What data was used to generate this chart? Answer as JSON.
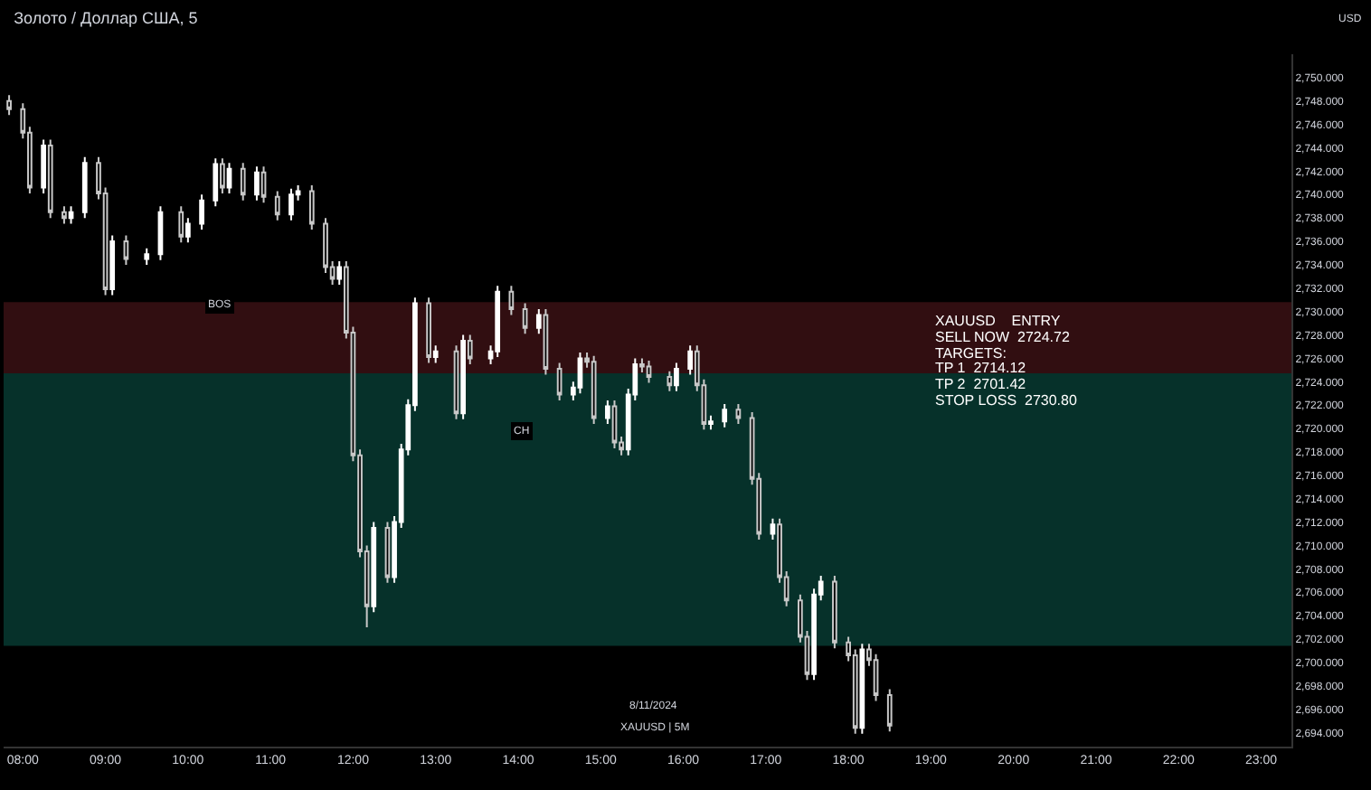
{
  "chart_data": {
    "type": "candlestick",
    "title": "Золото / Доллар США, 5",
    "x": [
      "2024-11-08T07:50",
      "2024-11-08T08:00",
      "2024-11-08T08:05",
      "2024-11-08T08:15",
      "2024-11-08T08:20",
      "2024-11-08T08:30",
      "2024-11-08T08:35",
      "2024-11-08T08:45",
      "2024-11-08T08:55",
      "2024-11-08T09:00",
      "2024-11-08T09:05",
      "2024-11-08T09:15",
      "2024-11-08T09:30",
      "2024-11-08T09:40",
      "2024-11-08T09:55",
      "2024-11-08T10:00",
      "2024-11-08T10:10",
      "2024-11-08T10:20",
      "2024-11-08T10:25",
      "2024-11-08T10:30",
      "2024-11-08T10:40",
      "2024-11-08T10:50",
      "2024-11-08T10:55",
      "2024-11-08T11:05",
      "2024-11-08T11:15",
      "2024-11-08T11:20",
      "2024-11-08T11:30",
      "2024-11-08T11:40",
      "2024-11-08T11:45",
      "2024-11-08T11:50",
      "2024-11-08T11:55",
      "2024-11-08T12:00",
      "2024-11-08T12:05",
      "2024-11-08T12:10",
      "2024-11-08T12:15",
      "2024-11-08T12:25",
      "2024-11-08T12:30",
      "2024-11-08T12:35",
      "2024-11-08T12:40",
      "2024-11-08T12:45",
      "2024-11-08T12:55",
      "2024-11-08T13:00",
      "2024-11-08T13:15",
      "2024-11-08T13:20",
      "2024-11-08T13:25",
      "2024-11-08T13:40",
      "2024-11-08T13:45",
      "2024-11-08T13:55",
      "2024-11-08T14:05",
      "2024-11-08T14:15",
      "2024-11-08T14:20",
      "2024-11-08T14:30",
      "2024-11-08T14:40",
      "2024-11-08T14:45",
      "2024-11-08T14:50",
      "2024-11-08T14:55",
      "2024-11-08T15:05",
      "2024-11-08T15:10",
      "2024-11-08T15:15",
      "2024-11-08T15:20",
      "2024-11-08T15:25",
      "2024-11-08T15:30",
      "2024-11-08T15:35",
      "2024-11-08T15:50",
      "2024-11-08T15:55",
      "2024-11-08T16:05",
      "2024-11-08T16:10",
      "2024-11-08T16:15",
      "2024-11-08T16:20",
      "2024-11-08T16:30",
      "2024-11-08T16:40",
      "2024-11-08T16:50",
      "2024-11-08T16:55",
      "2024-11-08T17:05",
      "2024-11-08T17:10",
      "2024-11-08T17:15",
      "2024-11-08T17:25",
      "2024-11-08T17:30",
      "2024-11-08T17:35",
      "2024-11-08T17:40",
      "2024-11-08T17:50",
      "2024-11-08T18:00",
      "2024-11-08T18:05",
      "2024-11-08T18:10",
      "2024-11-08T18:15",
      "2024-11-08T18:20",
      "2024-11-08T18:30"
    ],
    "ohlc": [
      [
        2748.0,
        2748.5,
        2746.8,
        2747.3
      ],
      [
        2747.3,
        2747.8,
        2744.8,
        2745.3
      ],
      [
        2745.3,
        2745.8,
        2740.1,
        2740.6
      ],
      [
        2740.6,
        2744.7,
        2740.1,
        2744.2
      ],
      [
        2744.2,
        2744.7,
        2738.0,
        2738.5
      ],
      [
        2738.5,
        2739.0,
        2737.5,
        2738.0
      ],
      [
        2738.0,
        2739.0,
        2737.5,
        2738.5
      ],
      [
        2738.5,
        2743.2,
        2738.0,
        2742.7
      ],
      [
        2742.7,
        2743.2,
        2739.6,
        2740.1
      ],
      [
        2740.1,
        2740.6,
        2731.4,
        2731.9
      ],
      [
        2731.9,
        2736.5,
        2731.4,
        2736.0
      ],
      [
        2736.0,
        2736.5,
        2734.0,
        2734.5
      ],
      [
        2734.5,
        2735.4,
        2734.0,
        2734.9
      ],
      [
        2734.9,
        2739.0,
        2734.4,
        2738.5
      ],
      [
        2738.5,
        2739.0,
        2735.9,
        2736.4
      ],
      [
        2736.4,
        2738.0,
        2735.9,
        2737.5
      ],
      [
        2737.5,
        2740.0,
        2737.0,
        2739.5
      ],
      [
        2739.5,
        2743.1,
        2739.0,
        2742.6
      ],
      [
        2742.6,
        2743.1,
        2740.1,
        2740.6
      ],
      [
        2740.6,
        2742.7,
        2740.1,
        2742.2
      ],
      [
        2742.2,
        2742.7,
        2739.5,
        2740.0
      ],
      [
        2740.0,
        2742.4,
        2739.5,
        2741.9
      ],
      [
        2741.9,
        2742.4,
        2739.3,
        2739.8
      ],
      [
        2739.8,
        2740.3,
        2737.8,
        2738.3
      ],
      [
        2738.3,
        2740.5,
        2737.8,
        2740.0
      ],
      [
        2740.0,
        2740.8,
        2739.5,
        2740.3
      ],
      [
        2740.3,
        2740.8,
        2737.0,
        2737.5
      ],
      [
        2737.5,
        2738.0,
        2733.3,
        2733.8
      ],
      [
        2733.8,
        2734.3,
        2732.3,
        2732.8
      ],
      [
        2732.8,
        2734.3,
        2732.3,
        2733.8
      ],
      [
        2733.8,
        2734.3,
        2727.7,
        2728.2
      ],
      [
        2728.2,
        2728.7,
        2717.2,
        2717.7
      ],
      [
        2717.7,
        2718.2,
        2709.0,
        2709.5
      ],
      [
        2709.5,
        2710.0,
        2703.0,
        2704.8
      ],
      [
        2704.8,
        2712.0,
        2704.3,
        2711.5
      ],
      [
        2711.5,
        2712.0,
        2706.8,
        2707.3
      ],
      [
        2707.3,
        2712.5,
        2706.8,
        2712.0
      ],
      [
        2712.0,
        2718.7,
        2711.5,
        2718.2
      ],
      [
        2718.2,
        2722.5,
        2717.7,
        2722.0
      ],
      [
        2722.0,
        2731.2,
        2721.5,
        2730.7
      ],
      [
        2730.7,
        2731.2,
        2725.6,
        2726.1
      ],
      [
        2726.1,
        2727.1,
        2725.6,
        2726.6
      ],
      [
        2726.6,
        2727.1,
        2720.8,
        2721.3
      ],
      [
        2721.3,
        2728.0,
        2720.8,
        2727.5
      ],
      [
        2727.5,
        2728.0,
        2725.5,
        2726.0
      ],
      [
        2726.0,
        2727.1,
        2725.5,
        2726.6
      ],
      [
        2726.6,
        2732.2,
        2726.1,
        2731.7
      ],
      [
        2731.7,
        2732.2,
        2729.7,
        2730.2
      ],
      [
        2730.2,
        2730.7,
        2728.1,
        2728.6
      ],
      [
        2728.6,
        2730.2,
        2728.1,
        2729.7
      ],
      [
        2729.7,
        2730.2,
        2724.6,
        2725.1
      ],
      [
        2725.1,
        2725.6,
        2722.4,
        2722.9
      ],
      [
        2722.9,
        2724.0,
        2722.4,
        2723.5
      ],
      [
        2723.5,
        2726.5,
        2723.0,
        2726.0
      ],
      [
        2726.0,
        2726.5,
        2725.2,
        2725.7
      ],
      [
        2725.7,
        2726.2,
        2720.4,
        2720.9
      ],
      [
        2720.9,
        2722.4,
        2720.4,
        2721.9
      ],
      [
        2721.9,
        2722.4,
        2718.3,
        2718.8
      ],
      [
        2718.8,
        2719.3,
        2717.7,
        2718.2
      ],
      [
        2718.2,
        2723.4,
        2717.7,
        2722.9
      ],
      [
        2722.9,
        2726.0,
        2722.4,
        2725.5
      ],
      [
        2725.5,
        2726.0,
        2724.8,
        2725.3
      ],
      [
        2725.3,
        2725.8,
        2723.9,
        2724.4
      ],
      [
        2724.4,
        2724.9,
        2723.2,
        2723.7
      ],
      [
        2723.7,
        2725.6,
        2723.2,
        2725.1
      ],
      [
        2725.1,
        2727.1,
        2724.6,
        2726.6
      ],
      [
        2726.6,
        2727.1,
        2723.2,
        2723.7
      ],
      [
        2723.7,
        2724.2,
        2719.9,
        2720.4
      ],
      [
        2720.4,
        2721.1,
        2719.9,
        2720.6
      ],
      [
        2720.6,
        2722.1,
        2720.1,
        2721.6
      ],
      [
        2721.6,
        2722.1,
        2720.4,
        2720.9
      ],
      [
        2720.9,
        2721.4,
        2715.2,
        2715.7
      ],
      [
        2715.7,
        2716.2,
        2710.5,
        2711.0
      ],
      [
        2711.0,
        2712.3,
        2710.5,
        2711.8
      ],
      [
        2711.8,
        2712.3,
        2706.8,
        2707.3
      ],
      [
        2707.3,
        2707.8,
        2704.8,
        2705.3
      ],
      [
        2705.3,
        2705.8,
        2701.7,
        2702.2
      ],
      [
        2702.2,
        2702.7,
        2698.5,
        2699.0
      ],
      [
        2699.0,
        2706.3,
        2698.5,
        2705.8
      ],
      [
        2705.8,
        2707.4,
        2705.3,
        2706.9
      ],
      [
        2706.9,
        2707.4,
        2701.2,
        2701.7
      ],
      [
        2701.7,
        2702.2,
        2700.1,
        2700.6
      ],
      [
        2700.6,
        2701.1,
        2693.9,
        2694.4
      ],
      [
        2694.4,
        2701.6,
        2693.9,
        2701.1
      ],
      [
        2701.1,
        2701.6,
        2699.7,
        2700.2
      ],
      [
        2700.2,
        2700.7,
        2696.7,
        2697.2
      ],
      [
        2697.2,
        2697.7,
        2694.1,
        2694.6
      ]
    ],
    "xlim": [
      "2024-11-08T07:46",
      "2024-11-08T23:22"
    ],
    "xticks": [
      {
        "value": "2024-11-08T08:00",
        "label": "08:00"
      },
      {
        "value": "2024-11-08T09:00",
        "label": "09:00"
      },
      {
        "value": "2024-11-08T10:00",
        "label": "10:00"
      },
      {
        "value": "2024-11-08T11:00",
        "label": "11:00"
      },
      {
        "value": "2024-11-08T12:00",
        "label": "12:00"
      },
      {
        "value": "2024-11-08T13:00",
        "label": "13:00"
      },
      {
        "value": "2024-11-08T14:00",
        "label": "14:00"
      },
      {
        "value": "2024-11-08T15:00",
        "label": "15:00"
      },
      {
        "value": "2024-11-08T16:00",
        "label": "16:00"
      },
      {
        "value": "2024-11-08T17:00",
        "label": "17:00"
      },
      {
        "value": "2024-11-08T18:00",
        "label": "18:00"
      },
      {
        "value": "2024-11-08T19:00",
        "label": "19:00"
      },
      {
        "value": "2024-11-08T20:00",
        "label": "20:00"
      },
      {
        "value": "2024-11-08T21:00",
        "label": "21:00"
      },
      {
        "value": "2024-11-08T22:00",
        "label": "22:00"
      },
      {
        "value": "2024-11-08T23:00",
        "label": "23:00"
      }
    ],
    "ylim": [
      2692.8,
      2752
    ],
    "yticks": [
      {
        "value": 2694,
        "label": "2,694.000"
      },
      {
        "value": 2696,
        "label": "2,696.000"
      },
      {
        "value": 2698,
        "label": "2,698.000"
      },
      {
        "value": 2700,
        "label": "2,700.000"
      },
      {
        "value": 2702,
        "label": "2,702.000"
      },
      {
        "value": 2704,
        "label": "2,704.000"
      },
      {
        "value": 2706,
        "label": "2,706.000"
      },
      {
        "value": 2708,
        "label": "2,708.000"
      },
      {
        "value": 2710,
        "label": "2,710.000"
      },
      {
        "value": 2712,
        "label": "2,712.000"
      },
      {
        "value": 2714,
        "label": "2,714.000"
      },
      {
        "value": 2716,
        "label": "2,716.000"
      },
      {
        "value": 2718,
        "label": "2,718.000"
      },
      {
        "value": 2720,
        "label": "2,720.000"
      },
      {
        "value": 2722,
        "label": "2,722.000"
      },
      {
        "value": 2724,
        "label": "2,724.000"
      },
      {
        "value": 2726,
        "label": "2,726.000"
      },
      {
        "value": 2728,
        "label": "2,728.000"
      },
      {
        "value": 2730,
        "label": "2,730.000"
      },
      {
        "value": 2732,
        "label": "2,732.000"
      },
      {
        "value": 2734,
        "label": "2,734.000"
      },
      {
        "value": 2736,
        "label": "2,736.000"
      },
      {
        "value": 2738,
        "label": "2,738.000"
      },
      {
        "value": 2740,
        "label": "2,740.000"
      },
      {
        "value": 2742,
        "label": "2,742.000"
      },
      {
        "value": 2744,
        "label": "2,744.000"
      },
      {
        "value": 2746,
        "label": "2,746.000"
      },
      {
        "value": 2748,
        "label": "2,748.000"
      },
      {
        "value": 2750,
        "label": "2,750.000"
      }
    ],
    "bands": [
      {
        "axis": "y",
        "from": 2724.72,
        "to": 2730.8,
        "color": "#5a1a1f"
      },
      {
        "axis": "y",
        "from": 2701.42,
        "to": 2724.72,
        "color": "#0b5a4c"
      }
    ],
    "annotations": [
      "XAUUSD    ENTRY",
      "SELL NOW  2724.72",
      "TARGETS:",
      "TP 1  2714.12",
      "TP 2  2701.42",
      "STOP LOSS  2730.80",
      "8/11/2024",
      "XAUUSD | 5M",
      "USD",
      {
        "text": "BOS",
        "x": "2024-11-08T10:23",
        "y": 2730.6
      },
      {
        "text": "CH",
        "x": "2024-11-08T14:02",
        "y": 2719.8
      }
    ],
    "grid": false
  }
}
